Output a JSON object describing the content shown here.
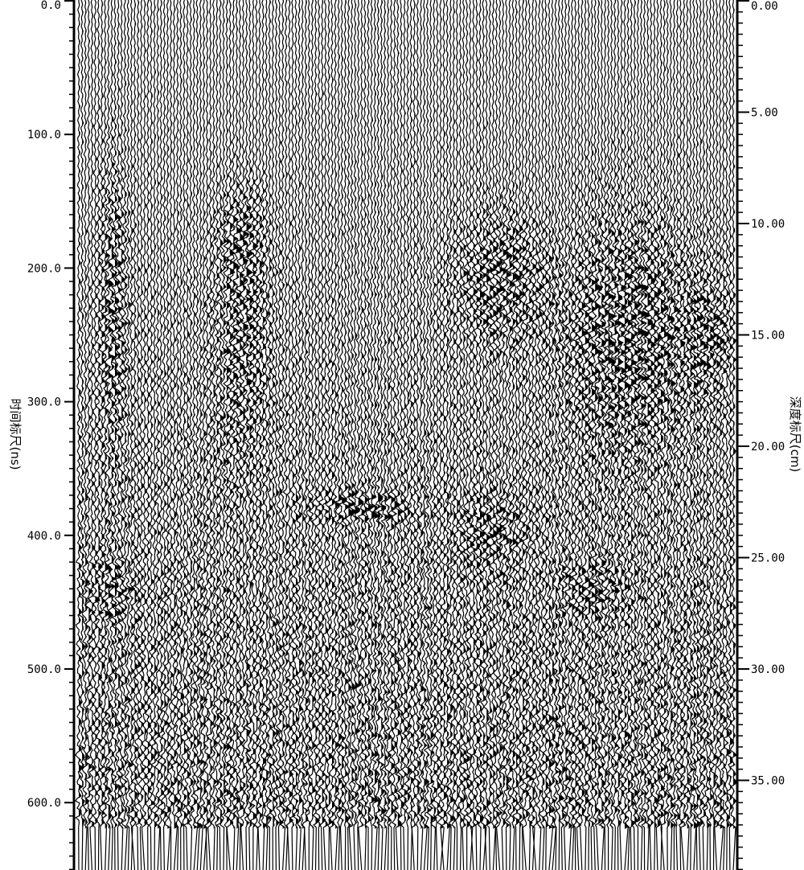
{
  "chart_data": {
    "type": "wiggle",
    "left_axis": {
      "label": "时间标尺(ns)",
      "range": [
        0,
        650
      ],
      "ticks": [
        "0.0",
        "100.0",
        "200.0",
        "300.0",
        "400.0",
        "500.0",
        "600.0"
      ],
      "tick_values": [
        0,
        100,
        200,
        300,
        400,
        500,
        600
      ],
      "minor_step": 10
    },
    "right_axis": {
      "label": "深度标尺(cm)",
      "range": [
        0,
        39
      ],
      "ticks": [
        "0.00",
        "5.00",
        "10.00",
        "15.00",
        "20.00",
        "25.00",
        "30.00",
        "35.00"
      ],
      "tick_values": [
        0,
        5,
        10,
        15,
        20,
        25,
        30,
        35
      ],
      "minor_step": 0.5
    },
    "record_end_ns": 620,
    "trace_color": "#000000",
    "background": "#ffffff"
  }
}
